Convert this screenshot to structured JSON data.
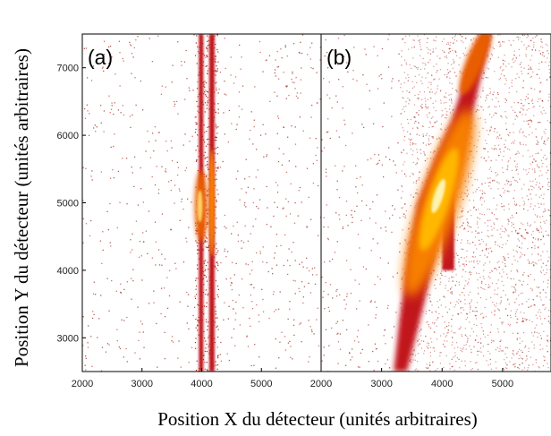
{
  "chart_data": {
    "type": "heatmap",
    "xlabel": "Position X du détecteur (unités arbitraires)",
    "ylabel": "Position Y du détecteur (unités arbitraires)",
    "ylim": [
      2500,
      7500
    ],
    "yticks": [
      3000,
      4000,
      5000,
      6000,
      7000
    ],
    "panels": [
      {
        "label": "(a)",
        "xlim": [
          2000,
          6000
        ],
        "xticks": [
          2000,
          3000,
          4000,
          5000
        ]
      },
      {
        "label": "(b)",
        "xlim": [
          2000,
          5800
        ],
        "xticks": [
          2000,
          3000,
          4000,
          5000
        ]
      }
    ]
  }
}
